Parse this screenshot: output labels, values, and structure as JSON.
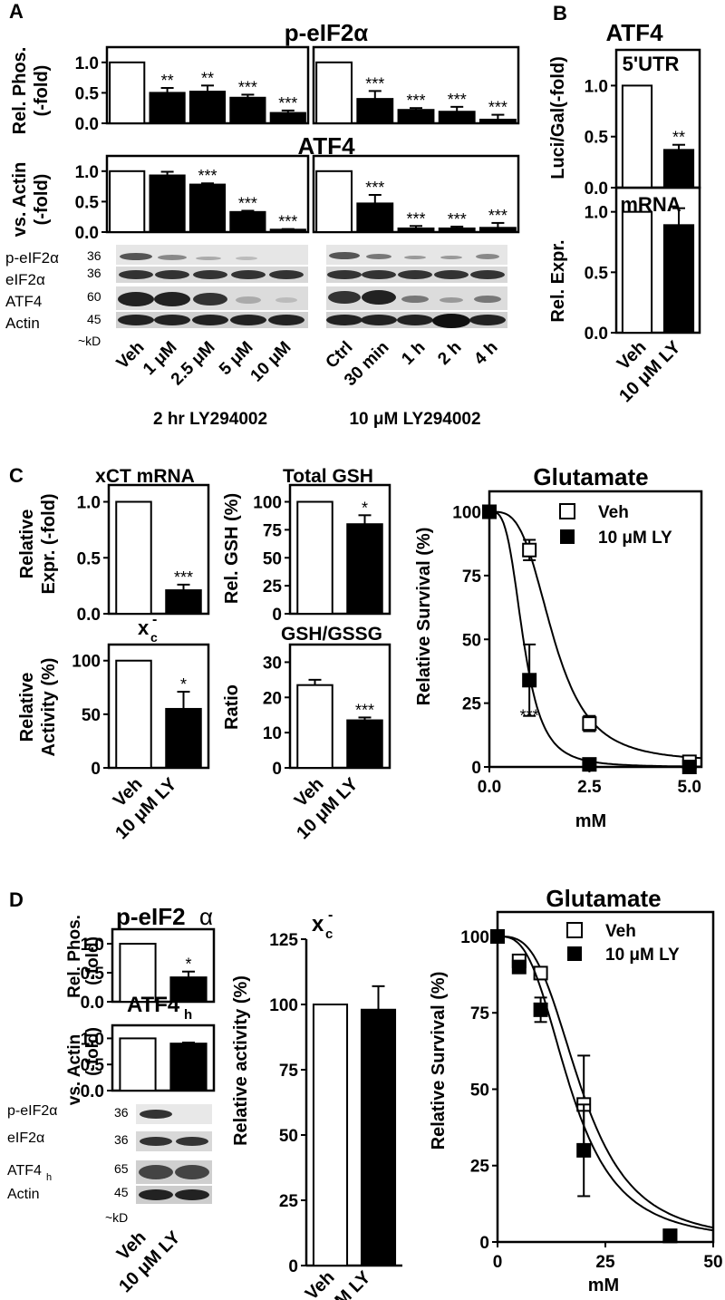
{
  "panels": {
    "A": {
      "letter": "A",
      "peif_title": "p-eIF2α",
      "peif_ylab1": "Rel. Phos.",
      "peif_ylab2": "(-fold)",
      "atf4_title": "ATF4",
      "atf4_ylab1": "vs. Actin",
      "atf4_ylab2": "(-fold)",
      "blot_labels": [
        "p-eIF2α",
        "eIF2α",
        "ATF4",
        "Actin"
      ],
      "kd_labels": [
        "36",
        "36",
        "60",
        "45"
      ],
      "kd_unit": "~kD",
      "dose_labels": [
        "Veh",
        "1 μM",
        "2.5 μM",
        "5 μM",
        "10 μM"
      ],
      "time_labels": [
        "Ctrl",
        "30 min",
        "1 h",
        "2 h",
        "4 h"
      ],
      "dose_caption": "2 hr LY294002",
      "time_caption": "10 μM LY294002"
    },
    "B": {
      "letter": "B",
      "title": "ATF4",
      "sub1": "5'UTR",
      "sub2": "mRNA",
      "ylab1": "Luci/Gal(-fold)",
      "ylab2": "Rel. Expr.",
      "x_labels": [
        "Veh",
        "10 μM LY"
      ]
    },
    "C": {
      "letter": "C",
      "xct_title": "xCT mRNA",
      "xct_ylab1": "Relative",
      "xct_ylab2": "Expr.  (-fold)",
      "xc_title": "x",
      "xc_sub": "c",
      "xc_sup": "-",
      "xc_ylab1": "Relative",
      "xc_ylab2": "Activity (%)",
      "gsh_title": "Total GSH",
      "gsh_ylab": "Rel. GSH (%)",
      "ratio_title": "GSH/GSSG",
      "ratio_ylab": "Ratio",
      "x_labels": [
        "Veh",
        "10 μM LY"
      ],
      "glu_title": "Glutamate",
      "glu_ylab": "Relative Survival (%)",
      "glu_xlab": "mM",
      "legend": [
        "Veh",
        "10 μM LY"
      ]
    },
    "D": {
      "letter": "D",
      "peif_title": "p-eIF2",
      "peif_alpha": "α",
      "peif_ylab1": "Rel. Phos.",
      "peif_ylab2": "(-fold)",
      "atf4_title": "ATF4",
      "atf4_sub": "h",
      "atf4_ylab1": "vs. Actin",
      "atf4_ylab2": "(-fold)",
      "blot_labels": [
        "p-eIF2α",
        "eIF2α",
        "ATF4",
        "Actin"
      ],
      "blot_sub": "h",
      "kd_labels": [
        "36",
        "36",
        "65",
        "45"
      ],
      "kd_unit": "~kD",
      "x_labels": [
        "Veh",
        "10 μM LY"
      ],
      "xc_title": "x",
      "xc_sub": "c",
      "xc_sup": "-",
      "xc_ylab": "Relative activity (%)",
      "glu_title": "Glutamate",
      "glu_ylab": "Relative Survival (%)",
      "glu_xlab": "mM",
      "legend": [
        "Veh",
        "10 μM LY"
      ]
    }
  },
  "chart_data": [
    {
      "id": "A-peif-dose",
      "type": "bar",
      "categories": [
        "Veh",
        "1 μM",
        "2.5 μM",
        "5 μM",
        "10 μM"
      ],
      "values": [
        1.0,
        0.5,
        0.52,
        0.42,
        0.17
      ],
      "errors": [
        0,
        0.08,
        0.1,
        0.05,
        0.04
      ],
      "sig": [
        "",
        "**",
        "**",
        "***",
        "***"
      ],
      "ylim": [
        0,
        1.25
      ],
      "yticks": [
        "0.0",
        "0.5",
        "1.0"
      ],
      "title": "p-eIF2α"
    },
    {
      "id": "A-peif-time",
      "type": "bar",
      "categories": [
        "Ctrl",
        "30 min",
        "1 h",
        "2 h",
        "4 h"
      ],
      "values": [
        1.0,
        0.4,
        0.22,
        0.19,
        0.06
      ],
      "errors": [
        0,
        0.13,
        0.03,
        0.08,
        0.08
      ],
      "sig": [
        "",
        "***",
        "***",
        "***",
        "***"
      ],
      "ylim": [
        0,
        1.25
      ],
      "yticks": [],
      "title": "p-eIF2α"
    },
    {
      "id": "A-atf4-dose",
      "type": "bar",
      "categories": [
        "Veh",
        "1 μM",
        "2.5 μM",
        "5 μM",
        "10 μM"
      ],
      "values": [
        1.0,
        0.93,
        0.78,
        0.33,
        0.04
      ],
      "errors": [
        0,
        0.06,
        0.02,
        0.02,
        0.01
      ],
      "sig": [
        "",
        "",
        "***",
        "***",
        "***"
      ],
      "ylim": [
        0,
        1.25
      ],
      "yticks": [
        "0.0",
        "0.5",
        "1.0"
      ],
      "title": "ATF4"
    },
    {
      "id": "A-atf4-time",
      "type": "bar",
      "categories": [
        "Ctrl",
        "30 min",
        "1 h",
        "2 h",
        "4 h"
      ],
      "values": [
        1.0,
        0.47,
        0.06,
        0.06,
        0.07
      ],
      "errors": [
        0,
        0.14,
        0.04,
        0.03,
        0.08
      ],
      "sig": [
        "",
        "***",
        "***",
        "***",
        "***"
      ],
      "ylim": [
        0,
        1.25
      ],
      "yticks": [],
      "title": "ATF4"
    },
    {
      "id": "B-utr",
      "type": "bar",
      "categories": [
        "Veh",
        "10 μM LY"
      ],
      "values": [
        1.0,
        0.37
      ],
      "errors": [
        0,
        0.05
      ],
      "sig": [
        "",
        "**"
      ],
      "ylim": [
        0,
        1.35
      ],
      "yticks": [
        "0.0",
        "0.5",
        "1.0"
      ],
      "title": "5'UTR"
    },
    {
      "id": "B-mrna",
      "type": "bar",
      "categories": [
        "Veh",
        "10 μM LY"
      ],
      "values": [
        1.0,
        0.89
      ],
      "errors": [
        0,
        0.14
      ],
      "sig": [
        "",
        ""
      ],
      "ylim": [
        0,
        1.2
      ],
      "yticks": [
        "0.0",
        "0.5",
        "1.0"
      ],
      "title": "mRNA"
    },
    {
      "id": "C-xct",
      "type": "bar",
      "categories": [
        "Veh",
        "10 μM LY"
      ],
      "values": [
        1.0,
        0.21
      ],
      "errors": [
        0,
        0.05
      ],
      "sig": [
        "",
        "***"
      ],
      "ylim": [
        0,
        1.15
      ],
      "yticks": [
        "0.0",
        "0.5",
        "1.0"
      ],
      "title": "xCT mRNA"
    },
    {
      "id": "C-xc",
      "type": "bar",
      "categories": [
        "Veh",
        "10 μM LY"
      ],
      "values": [
        100,
        55
      ],
      "errors": [
        0,
        16
      ],
      "sig": [
        "",
        "*"
      ],
      "ylim": [
        0,
        115
      ],
      "yticks": [
        "0",
        "50",
        "100"
      ],
      "title": "xc-"
    },
    {
      "id": "C-gsh",
      "type": "bar",
      "categories": [
        "Veh",
        "10 μM LY"
      ],
      "values": [
        100,
        80
      ],
      "errors": [
        0,
        8
      ],
      "sig": [
        "",
        "*"
      ],
      "ylim": [
        0,
        115
      ],
      "yticks": [
        "0",
        "25",
        "50",
        "75",
        "100"
      ],
      "title": "Total GSH"
    },
    {
      "id": "C-ratio",
      "type": "bar",
      "categories": [
        "Veh",
        "10 μM LY"
      ],
      "values": [
        23.5,
        13.5
      ],
      "errors": [
        1.5,
        0.8
      ],
      "sig": [
        "",
        "***"
      ],
      "ylim": [
        0,
        35
      ],
      "yticks": [
        "0",
        "10",
        "20",
        "30"
      ],
      "title": "GSH/GSSG"
    },
    {
      "id": "C-glu",
      "type": "scatter",
      "title": "Glutamate",
      "xlabel": "mM",
      "ylabel": "Relative Survival (%)",
      "xlim": [
        0,
        5.3
      ],
      "ylim": [
        0,
        108
      ],
      "xticks": [
        "0.0",
        "2.5",
        "5.0"
      ],
      "yticks": [
        "0",
        "25",
        "50",
        "75",
        "100"
      ],
      "series": [
        {
          "name": "Veh",
          "x": [
            0,
            1,
            2.5,
            5
          ],
          "y": [
            100,
            85,
            17,
            2
          ],
          "errors": [
            0,
            4,
            3,
            1
          ],
          "ec50": 1.6,
          "hill": 3.5,
          "bottom": 2
        },
        {
          "name": "10 μM LY",
          "x": [
            0,
            1,
            2.5,
            5
          ],
          "y": [
            100,
            34,
            1,
            0
          ],
          "errors": [
            0,
            14,
            1,
            0
          ],
          "ec50": 0.85,
          "hill": 3.5,
          "bottom": 0
        }
      ],
      "annotations": [
        {
          "x": 1,
          "y": 18,
          "text": "***"
        }
      ]
    },
    {
      "id": "D-peif",
      "type": "bar",
      "categories": [
        "Veh",
        "10 μM LY"
      ],
      "values": [
        1.0,
        0.42
      ],
      "errors": [
        0,
        0.1
      ],
      "sig": [
        "",
        "*"
      ],
      "ylim": [
        0,
        1.25
      ],
      "yticks": [
        "0.0",
        "0.5",
        "1.0"
      ],
      "title": "p-eIF2α"
    },
    {
      "id": "D-atf4",
      "type": "bar",
      "categories": [
        "Veh",
        "10 μM LY"
      ],
      "values": [
        1.0,
        0.9
      ],
      "errors": [
        0,
        0.02
      ],
      "sig": [
        "",
        ""
      ],
      "ylim": [
        0,
        1.25
      ],
      "yticks": [
        "0.0",
        "0.5",
        "1.0"
      ],
      "title": "ATF4h"
    },
    {
      "id": "D-xc",
      "type": "bar",
      "categories": [
        "Veh",
        "10 μM LY"
      ],
      "values": [
        100,
        98
      ],
      "errors": [
        0,
        9
      ],
      "sig": [
        "",
        ""
      ],
      "ylim": [
        0,
        125
      ],
      "yticks": [
        "0",
        "25",
        "50",
        "75",
        "100",
        "125"
      ],
      "title": "xc-"
    },
    {
      "id": "D-glu",
      "type": "scatter",
      "title": "Glutamate",
      "xlabel": "mM",
      "ylabel": "Relative Survival (%)",
      "xlim": [
        0,
        50
      ],
      "ylim": [
        0,
        108
      ],
      "xticks": [
        "0",
        "25",
        "50"
      ],
      "yticks": [
        "0",
        "25",
        "50",
        "75",
        "100"
      ],
      "series": [
        {
          "name": "Veh",
          "x": [
            0,
            5,
            10,
            20,
            40
          ],
          "y": [
            100,
            92,
            88,
            45,
            2
          ],
          "errors": [
            0,
            2,
            2,
            16,
            1
          ],
          "ec50": 19.5,
          "hill": 3.2,
          "bottom": 0
        },
        {
          "name": "10 μM LY",
          "x": [
            0,
            5,
            10,
            20,
            40
          ],
          "y": [
            100,
            90,
            76,
            30,
            2
          ],
          "errors": [
            0,
            2,
            4,
            15,
            1
          ],
          "ec50": 17,
          "hill": 3.0,
          "bottom": 0
        }
      ]
    }
  ]
}
